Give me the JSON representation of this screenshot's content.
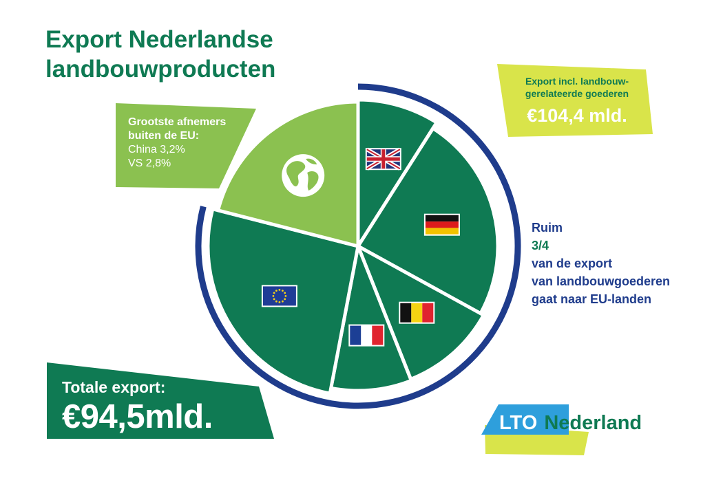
{
  "title": {
    "line1": "Export Nederlandse",
    "line2": "landbouwproducten"
  },
  "callout_left": {
    "line1": "Grootste afnemers",
    "line2": "buiten de EU:",
    "line3": "China 3,2%",
    "line4": "VS 2,8%"
  },
  "callout_right": {
    "line1": "Export incl. landbouw-",
    "line2": "gerelateerde goederen",
    "value": "€104,4 mld."
  },
  "eu_note": {
    "line1_pre": "Ruim ",
    "line1_frac": "3/4",
    "line1_post": " van de export",
    "line2": "van landbouwgoederen",
    "line3": "gaat naar EU-landen"
  },
  "total": {
    "label": "Totale export:",
    "value": "€94,5mld."
  },
  "logo": {
    "part1": "LTO",
    "part2": "Nederland"
  },
  "colors": {
    "green_dark": "#0f7a53",
    "green_light": "#8bc150",
    "navy": "#1f3c8c",
    "yellow": "#d9e44a",
    "blue_light": "#2e9fdc"
  },
  "chart_data": {
    "type": "pie",
    "slices": [
      {
        "icon": "uk-flag-icon",
        "value": 9
      },
      {
        "icon": "german-flag-icon",
        "value": 24
      },
      {
        "icon": "belgian-flag-icon",
        "value": 11
      },
      {
        "icon": "french-flag-icon",
        "value": 9
      },
      {
        "icon": "eu-flag-icon",
        "value": 26
      },
      {
        "icon": "globe-icon",
        "value": 21
      }
    ]
  }
}
